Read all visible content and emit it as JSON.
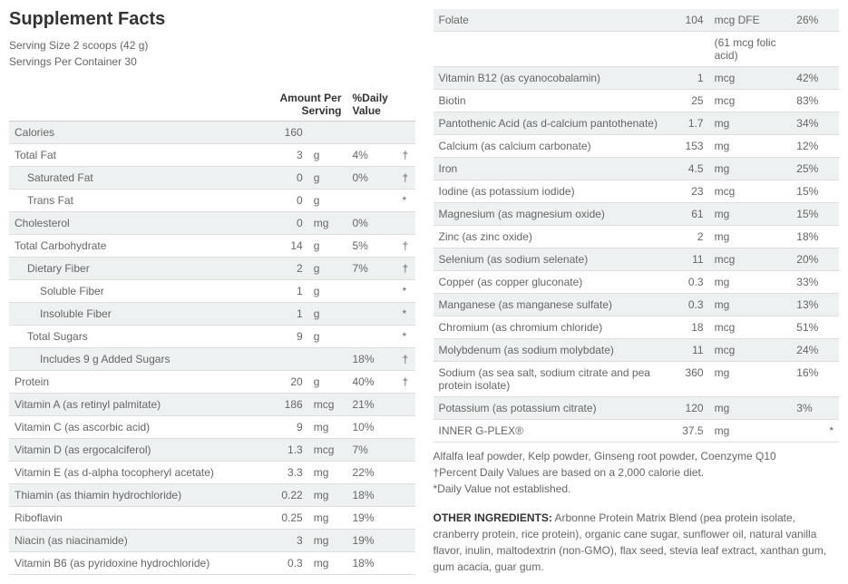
{
  "title": "Supplement Facts",
  "serving_size": "Serving Size 2 scoops (42 g)",
  "servings_per_container": "Servings Per Container 30",
  "headers": {
    "amount": "Amount Per Serving",
    "dv": "%Daily Value"
  },
  "left_rows": [
    {
      "name": "Calories",
      "amt": "160",
      "unit": "",
      "dv": "",
      "sym": "",
      "indent": 0,
      "stripe": true
    },
    {
      "name": "Total Fat",
      "amt": "3",
      "unit": "g",
      "dv": "4%",
      "sym": "†",
      "indent": 0,
      "stripe": false
    },
    {
      "name": "Saturated Fat",
      "amt": "0",
      "unit": "g",
      "dv": "0%",
      "sym": "†",
      "indent": 1,
      "stripe": true
    },
    {
      "name": "Trans Fat",
      "amt": "0",
      "unit": "g",
      "dv": "",
      "sym": "*",
      "indent": 1,
      "stripe": false
    },
    {
      "name": "Cholesterol",
      "amt": "0",
      "unit": "mg",
      "dv": "0%",
      "sym": "",
      "indent": 0,
      "stripe": true
    },
    {
      "name": "Total Carbohydrate",
      "amt": "14",
      "unit": "g",
      "dv": "5%",
      "sym": "†",
      "indent": 0,
      "stripe": false
    },
    {
      "name": "Dietary Fiber",
      "amt": "2",
      "unit": "g",
      "dv": "7%",
      "sym": "†",
      "indent": 1,
      "stripe": true
    },
    {
      "name": "Soluble Fiber",
      "amt": "1",
      "unit": "g",
      "dv": "",
      "sym": "*",
      "indent": 2,
      "stripe": false
    },
    {
      "name": "Insoluble Fiber",
      "amt": "1",
      "unit": "g",
      "dv": "",
      "sym": "*",
      "indent": 2,
      "stripe": true
    },
    {
      "name": "Total Sugars",
      "amt": "9",
      "unit": "g",
      "dv": "",
      "sym": "*",
      "indent": 1,
      "stripe": false
    },
    {
      "name": "Includes 9 g Added Sugars",
      "amt": "",
      "unit": "",
      "dv": "18%",
      "sym": "†",
      "indent": 2,
      "stripe": true
    },
    {
      "name": "Protein",
      "amt": "20",
      "unit": "g",
      "dv": "40%",
      "sym": "†",
      "indent": 0,
      "stripe": false
    },
    {
      "name": "Vitamin A (as retinyl palmitate)",
      "amt": "186",
      "unit": "mcg",
      "dv": "21%",
      "sym": "",
      "indent": 0,
      "stripe": true
    },
    {
      "name": "Vitamin C (as ascorbic acid)",
      "amt": "9",
      "unit": "mg",
      "dv": "10%",
      "sym": "",
      "indent": 0,
      "stripe": false
    },
    {
      "name": "Vitamin D (as ergocalciferol)",
      "amt": "1.3",
      "unit": "mcg",
      "dv": "7%",
      "sym": "",
      "indent": 0,
      "stripe": true
    },
    {
      "name": "Vitamin E (as d-alpha tocopheryl acetate)",
      "amt": "3.3",
      "unit": "mg",
      "dv": "22%",
      "sym": "",
      "indent": 0,
      "stripe": false
    },
    {
      "name": "Thiamin (as thiamin hydrochloride)",
      "amt": "0.22",
      "unit": "mg",
      "dv": "18%",
      "sym": "",
      "indent": 0,
      "stripe": true
    },
    {
      "name": "Riboflavin",
      "amt": "0.25",
      "unit": "mg",
      "dv": "19%",
      "sym": "",
      "indent": 0,
      "stripe": false
    },
    {
      "name": "Niacin (as niacinamide)",
      "amt": "3",
      "unit": "mg",
      "dv": "19%",
      "sym": "",
      "indent": 0,
      "stripe": true
    },
    {
      "name": "Vitamin B6 (as pyridoxine hydrochloride)",
      "amt": "0.3",
      "unit": "mg",
      "dv": "18%",
      "sym": "",
      "indent": 0,
      "stripe": false
    }
  ],
  "right_rows": [
    {
      "name": "Folate",
      "amt": "104",
      "unit": "mcg DFE",
      "dv": "26%",
      "sym": "",
      "indent": 0,
      "stripe": true,
      "subnote": ""
    },
    {
      "name": "",
      "amt": "",
      "unit": "(61 mcg folic acid)",
      "dv": "",
      "sym": "",
      "indent": 0,
      "stripe": false,
      "subnote": ""
    },
    {
      "name": "Vitamin B12 (as cyanocobalamin)",
      "amt": "1",
      "unit": "mcg",
      "dv": "42%",
      "sym": "",
      "indent": 0,
      "stripe": true
    },
    {
      "name": "Biotin",
      "amt": "25",
      "unit": "mcg",
      "dv": "83%",
      "sym": "",
      "indent": 0,
      "stripe": false
    },
    {
      "name": "Pantothenic Acid (as d-calcium pantothenate)",
      "amt": "1.7",
      "unit": "mg",
      "dv": "34%",
      "sym": "",
      "indent": 0,
      "stripe": true
    },
    {
      "name": "Calcium (as calcium carbonate)",
      "amt": "153",
      "unit": "mg",
      "dv": "12%",
      "sym": "",
      "indent": 0,
      "stripe": false
    },
    {
      "name": "Iron",
      "amt": "4.5",
      "unit": "mg",
      "dv": "25%",
      "sym": "",
      "indent": 0,
      "stripe": true
    },
    {
      "name": "Iodine (as potassium iodide)",
      "amt": "23",
      "unit": "mcg",
      "dv": "15%",
      "sym": "",
      "indent": 0,
      "stripe": false
    },
    {
      "name": "Magnesium (as magnesium oxide)",
      "amt": "61",
      "unit": "mg",
      "dv": "15%",
      "sym": "",
      "indent": 0,
      "stripe": true
    },
    {
      "name": "Zinc (as zinc oxide)",
      "amt": "2",
      "unit": "mg",
      "dv": "18%",
      "sym": "",
      "indent": 0,
      "stripe": false
    },
    {
      "name": "Selenium (as sodium selenate)",
      "amt": "11",
      "unit": "mcg",
      "dv": "20%",
      "sym": "",
      "indent": 0,
      "stripe": true
    },
    {
      "name": "Copper (as copper gluconate)",
      "amt": "0.3",
      "unit": "mg",
      "dv": "33%",
      "sym": "",
      "indent": 0,
      "stripe": false
    },
    {
      "name": "Manganese (as manganese sulfate)",
      "amt": "0.3",
      "unit": "mg",
      "dv": "13%",
      "sym": "",
      "indent": 0,
      "stripe": true
    },
    {
      "name": "Chromium (as chromium chloride)",
      "amt": "18",
      "unit": "mcg",
      "dv": "51%",
      "sym": "",
      "indent": 0,
      "stripe": false
    },
    {
      "name": "Molybdenum (as sodium molybdate)",
      "amt": "11",
      "unit": "mcg",
      "dv": "24%",
      "sym": "",
      "indent": 0,
      "stripe": true
    },
    {
      "name": "Sodium (as sea salt, sodium citrate and pea protein isolate)",
      "amt": "360",
      "unit": "mg",
      "dv": "16%",
      "sym": "",
      "indent": 0,
      "stripe": false
    },
    {
      "name": "Potassium (as potassium citrate)",
      "amt": "120",
      "unit": "mg",
      "dv": "3%",
      "sym": "",
      "indent": 0,
      "stripe": true
    },
    {
      "name": "INNER G-PLEX®",
      "amt": "37.5",
      "unit": "mg",
      "dv": "",
      "sym": "*",
      "indent": 0,
      "stripe": false
    }
  ],
  "blend_line": "Alfalfa leaf powder, Kelp powder, Ginseng root powder, Coenzyme Q10",
  "dv_note": "†Percent Daily Values are based on a 2,000 calorie diet.",
  "asterisk_note": "*Daily Value not established.",
  "other_label": "OTHER INGREDIENTS:",
  "other_text": " Arbonne Protein Matrix Blend (pea protein isolate, cranberry protein, rice protein), organic cane sugar, sunflower oil, natural vanilla flavor, inulin, maltodextrin (non-GMO), flax seed, stevia leaf extract, xanthan gum, gum acacia, guar gum.",
  "colors": {
    "stripe": "#eef1f1",
    "border": "#dddddd",
    "text": "#666666",
    "heading": "#333333"
  }
}
